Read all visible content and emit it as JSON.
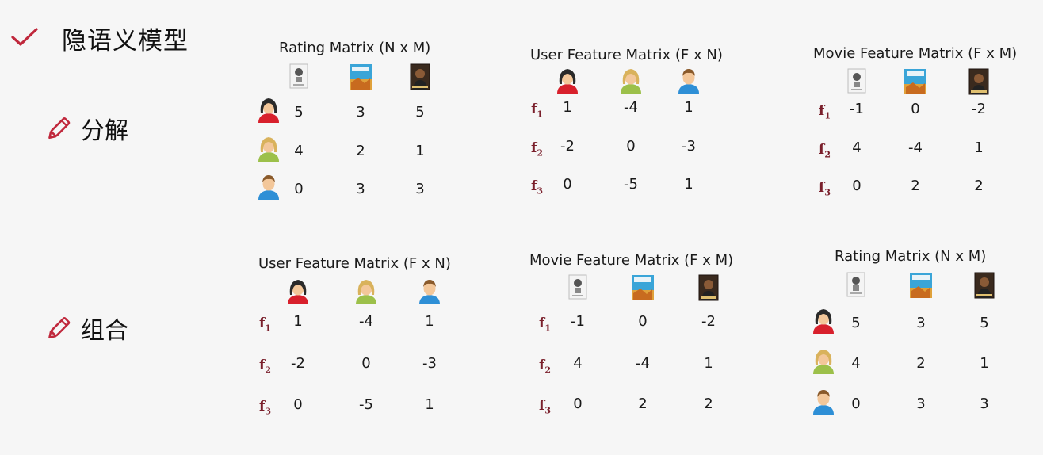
{
  "page": {
    "title": "隐语义模型",
    "title_icon": "check-icon",
    "sections": [
      {
        "label": "分解",
        "icon": "pencil-icon"
      },
      {
        "label": "组合",
        "icon": "pencil-icon"
      }
    ]
  },
  "icons": {
    "users": [
      "female-user-icon",
      "blonde-user-icon",
      "male-user-icon"
    ],
    "movies": [
      "movie-poster-white-icon",
      "movie-poster-blue-icon",
      "movie-poster-dark-icon"
    ]
  },
  "colors": {
    "accent": "#c0283c",
    "label": "#7a1f2b"
  },
  "matrices": [
    {
      "id": "rating-top",
      "title": "Rating Matrix (N x M)",
      "col_icons": "movies",
      "row_icons": "users",
      "row_labels": [],
      "rows": [
        [
          "5",
          "3",
          "5"
        ],
        [
          "4",
          "2",
          "1"
        ],
        [
          "0",
          "3",
          "3"
        ]
      ]
    },
    {
      "id": "user-feature-top",
      "title": "User Feature Matrix (F x N)",
      "col_icons": "users",
      "row_icons": "",
      "row_labels": [
        "f",
        "f",
        "f"
      ],
      "row_subs": [
        "1",
        "2",
        "3"
      ],
      "rows": [
        [
          "1",
          "-4",
          "1"
        ],
        [
          "-2",
          "0",
          "-3"
        ],
        [
          "0",
          "-5",
          "1"
        ]
      ]
    },
    {
      "id": "movie-feature-top",
      "title": "Movie Feature Matrix (F x M)",
      "col_icons": "movies",
      "row_icons": "",
      "row_labels": [
        "f",
        "f",
        "f"
      ],
      "row_subs": [
        "1",
        "2",
        "3"
      ],
      "rows": [
        [
          "-1",
          "0",
          "-2"
        ],
        [
          "4",
          "-4",
          "1"
        ],
        [
          "0",
          "2",
          "2"
        ]
      ]
    },
    {
      "id": "user-feature-bottom",
      "title": "User Feature Matrix (F x N)",
      "col_icons": "users",
      "row_icons": "",
      "row_labels": [
        "f",
        "f",
        "f"
      ],
      "row_subs": [
        "1",
        "2",
        "3"
      ],
      "rows": [
        [
          "1",
          "-4",
          "1"
        ],
        [
          "-2",
          "0",
          "-3"
        ],
        [
          "0",
          "-5",
          "1"
        ]
      ]
    },
    {
      "id": "movie-feature-bottom",
      "title": "Movie Feature Matrix (F x M)",
      "col_icons": "movies",
      "row_icons": "",
      "row_labels": [
        "f",
        "f",
        "f"
      ],
      "row_subs": [
        "1",
        "2",
        "3"
      ],
      "rows": [
        [
          "-1",
          "0",
          "-2"
        ],
        [
          "4",
          "-4",
          "1"
        ],
        [
          "0",
          "2",
          "2"
        ]
      ]
    },
    {
      "id": "rating-bottom",
      "title": "Rating Matrix (N x M)",
      "col_icons": "movies",
      "row_icons": "users",
      "row_labels": [],
      "rows": [
        [
          "5",
          "3",
          "5"
        ],
        [
          "4",
          "2",
          "1"
        ],
        [
          "0",
          "3",
          "3"
        ]
      ]
    }
  ]
}
